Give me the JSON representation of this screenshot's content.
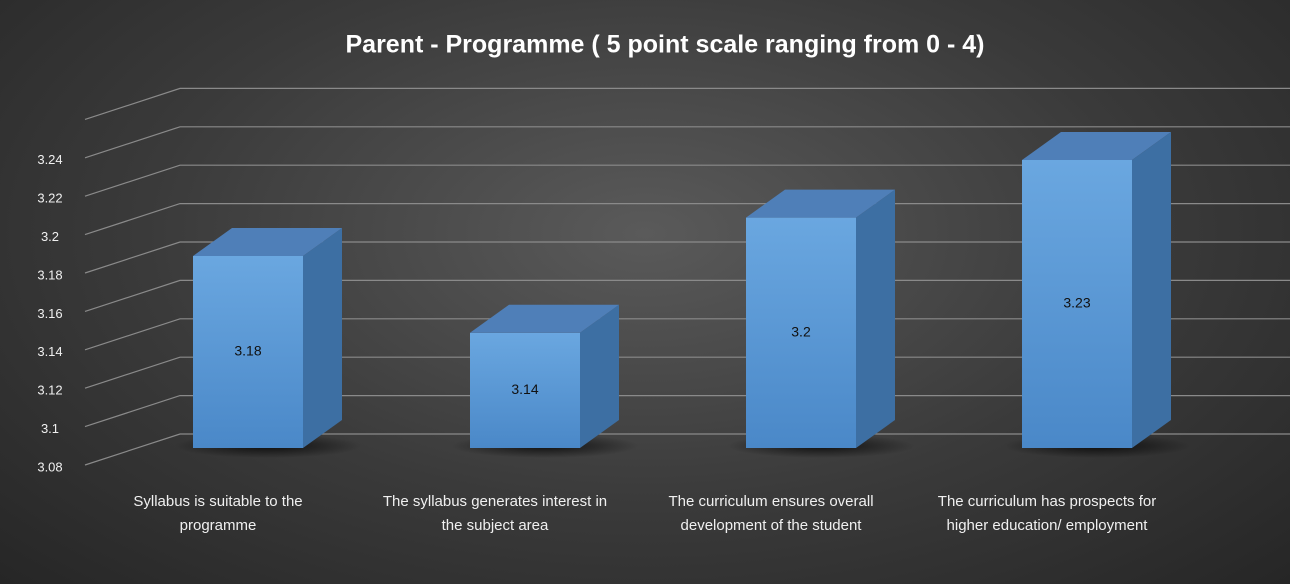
{
  "chart_data": {
    "type": "bar3d",
    "title": "Parent - Programme ( 5 point scale ranging from 0 - 4)",
    "categories": [
      "Syllabus is suitable to the programme",
      "The syllabus generates interest in the subject area",
      "The curriculum ensures overall development of the student",
      "The curriculum has prospects for higher education/ employment"
    ],
    "values": [
      3.18,
      3.14,
      3.2,
      3.23
    ],
    "color": "#5b9bd5",
    "ylim": [
      3.08,
      3.26
    ],
    "yticks": [
      3.08,
      3.1,
      3.12,
      3.14,
      3.16,
      3.18,
      3.2,
      3.22,
      3.24
    ],
    "grid": true
  }
}
